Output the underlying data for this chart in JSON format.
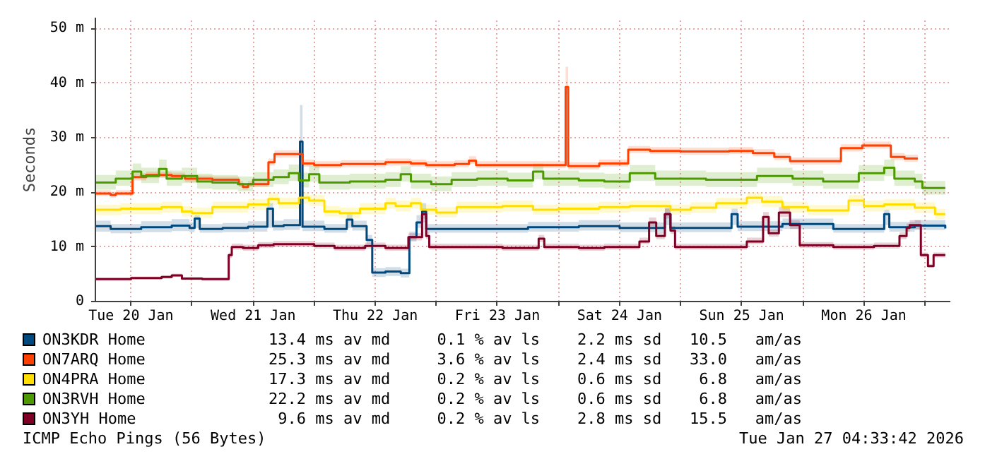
{
  "chart_data": {
    "type": "step",
    "ylabel": "Seconds",
    "legend": "bottom",
    "grid": true,
    "line_style": "solid",
    "marker": "none",
    "xlim": [
      "2026-01-20T05:00",
      "2026-01-27T05:00"
    ],
    "ylim": [
      0,
      52
    ],
    "xticks": [
      {
        "value": "2026-01-20T12:00",
        "label": "Tue 20 Jan"
      },
      {
        "value": "2026-01-21T00:00",
        "label": null
      },
      {
        "value": "2026-01-21T12:00",
        "label": "Wed 21 Jan"
      },
      {
        "value": "2026-01-22T00:00",
        "label": null
      },
      {
        "value": "2026-01-22T12:00",
        "label": "Thu 22 Jan"
      },
      {
        "value": "2026-01-23T00:00",
        "label": null
      },
      {
        "value": "2026-01-23T12:00",
        "label": "Fri 23 Jan"
      },
      {
        "value": "2026-01-24T00:00",
        "label": null
      },
      {
        "value": "2026-01-24T12:00",
        "label": "Sat 24 Jan"
      },
      {
        "value": "2026-01-25T00:00",
        "label": null
      },
      {
        "value": "2026-01-25T12:00",
        "label": "Sun 25 Jan"
      },
      {
        "value": "2026-01-26T00:00",
        "label": null
      },
      {
        "value": "2026-01-26T12:00",
        "label": "Mon 26 Jan"
      },
      {
        "value": "2026-01-27T00:00",
        "label": null
      }
    ],
    "yticks": [
      0,
      {
        "value": 10,
        "label": "10 m"
      },
      {
        "value": 20,
        "label": "20 m"
      },
      {
        "value": 30,
        "label": "30 m"
      },
      {
        "value": 40,
        "label": "40 m"
      },
      {
        "value": 50,
        "label": "50 m"
      }
    ],
    "series": [
      {
        "name": "ON3KDR Home",
        "color": "#00497f",
        "x": [
          "2026-01-20T05:00",
          "2026-01-20T08:00",
          "2026-01-20T14:00",
          "2026-01-20T20:00",
          "2026-01-20T23:30",
          "2026-01-21T00:30",
          "2026-01-21T01:30",
          "2026-01-21T06:00",
          "2026-01-21T11:00",
          "2026-01-21T14:48",
          "2026-01-21T15:54",
          "2026-01-21T18:00",
          "2026-01-21T21:12",
          "2026-01-21T21:42",
          "2026-01-22T02:00",
          "2026-01-22T06:24",
          "2026-01-22T07:30",
          "2026-01-22T10:18",
          "2026-01-22T11:24",
          "2026-01-22T14:00",
          "2026-01-22T17:00",
          "2026-01-22T18:42",
          "2026-01-22T20:06",
          "2026-01-22T21:12",
          "2026-01-22T22:00",
          "2026-01-23T08:00",
          "2026-01-23T18:00",
          "2026-01-24T04:00",
          "2026-01-24T12:00",
          "2026-01-24T20:54",
          "2026-01-24T22:00",
          "2026-01-25T05:00",
          "2026-01-25T10:00",
          "2026-01-25T11:12",
          "2026-01-25T20:00",
          "2026-01-26T06:00",
          "2026-01-26T16:00",
          "2026-01-26T17:00",
          "2026-01-26T22:00",
          "2026-01-27T04:00"
        ],
        "values": [
          13.8,
          13.3,
          13.6,
          13.9,
          13.5,
          15.2,
          13.3,
          13.5,
          13.7,
          17,
          13.8,
          14,
          29.3,
          13.7,
          13.3,
          15,
          13.8,
          11.3,
          5.3,
          5.5,
          5.2,
          11.8,
          14.5,
          16.5,
          13.3,
          13.3,
          13.6,
          13.8,
          13.5,
          16,
          13.5,
          13.5,
          16,
          13.7,
          14.2,
          13.3,
          16,
          13.6,
          13.9,
          13.4
        ],
        "lower": [
          12.8,
          12.5,
          12.7,
          12.9,
          12.7,
          13.5,
          12.6,
          12.7,
          12.8,
          13.5,
          13,
          13.1,
          13.5,
          12.9,
          12.6,
          13.5,
          13,
          10.5,
          4.5,
          4.7,
          4.4,
          11,
          13.5,
          14.5,
          12.6,
          12.6,
          12.8,
          13,
          12.7,
          14,
          12.7,
          12.7,
          14,
          12.9,
          13.3,
          12.6,
          14,
          12.8,
          13.1,
          12.7
        ],
        "upper": [
          14.8,
          14.2,
          14.7,
          15.1,
          14.5,
          15.8,
          14.2,
          14.4,
          14.7,
          18,
          14.8,
          15.1,
          36,
          14.8,
          14.2,
          16,
          14.8,
          12.2,
          6.1,
          6.3,
          6,
          12.8,
          15.8,
          18,
          14.2,
          14.2,
          14.6,
          14.9,
          14.5,
          17.2,
          14.5,
          14.5,
          17,
          14.7,
          15.2,
          14.2,
          16.8,
          14.6,
          14.9,
          14.2
        ]
      },
      {
        "name": "ON7ARQ Home",
        "color": "#ff4000",
        "x": [
          "2026-01-20T05:00",
          "2026-01-20T08:00",
          "2026-01-20T09:00",
          "2026-01-20T12:18",
          "2026-01-20T15:00",
          "2026-01-20T20:00",
          "2026-01-20T22:36",
          "2026-01-21T04:00",
          "2026-01-21T09:12",
          "2026-01-21T10:00",
          "2026-01-21T11:00",
          "2026-01-21T15:00",
          "2026-01-21T16:12",
          "2026-01-21T21:42",
          "2026-01-22T00:00",
          "2026-01-22T05:18",
          "2026-01-22T14:00",
          "2026-01-22T19:00",
          "2026-01-22T22:00",
          "2026-01-23T03:36",
          "2026-01-23T06:24",
          "2026-01-23T07:48",
          "2026-01-23T18:00",
          "2026-01-24T01:24",
          "2026-01-24T01:54",
          "2026-01-24T08:00",
          "2026-01-24T13:42",
          "2026-01-24T18:00",
          "2026-01-25T00:00",
          "2026-01-25T09:30",
          "2026-01-25T14:12",
          "2026-01-25T18:24",
          "2026-01-25T21:30",
          "2026-01-26T07:30",
          "2026-01-26T11:42",
          "2026-01-26T17:18",
          "2026-01-26T20:00",
          "2026-01-26T22:36"
        ],
        "values": [
          19.8,
          19.5,
          19.8,
          22.8,
          23.2,
          23,
          22.5,
          22.3,
          21.5,
          21,
          21.5,
          25.5,
          27,
          25.3,
          25,
          25.2,
          25.5,
          25.3,
          25,
          25.2,
          25.8,
          25,
          25,
          39.3,
          24.8,
          25.3,
          27.8,
          27.6,
          27.5,
          27.6,
          27.2,
          26.5,
          25.7,
          28.1,
          28.6,
          26.5,
          26.2,
          26.2
        ],
        "lower": [
          19.3,
          19,
          19.3,
          22.2,
          22.6,
          22.4,
          21.9,
          21.7,
          21,
          20.5,
          21,
          24.9,
          26.4,
          24.7,
          24.4,
          24.6,
          24.9,
          24.7,
          24.4,
          24.6,
          25.2,
          24.4,
          24.4,
          38,
          24.2,
          24.7,
          27.2,
          27,
          26.9,
          27,
          26.6,
          25.9,
          25.1,
          27.5,
          28,
          25.9,
          25.6,
          25.6
        ],
        "upper": [
          20.4,
          20.1,
          20.4,
          23.5,
          23.8,
          23.6,
          23.1,
          22.9,
          22.1,
          21.6,
          22.1,
          26.2,
          27.7,
          26,
          25.7,
          25.9,
          26.2,
          26,
          25.7,
          25.9,
          26.6,
          25.7,
          25.7,
          43,
          25.5,
          26,
          28.5,
          28.3,
          28.2,
          28.3,
          27.9,
          27.2,
          26.4,
          28.8,
          29.3,
          27.2,
          26.9,
          26.9
        ]
      },
      {
        "name": "ON4PRA Home",
        "color": "#ffde00",
        "x": [
          "2026-01-20T05:00",
          "2026-01-20T10:00",
          "2026-01-20T18:00",
          "2026-01-20T22:00",
          "2026-01-21T00:00",
          "2026-01-21T04:00",
          "2026-01-21T11:00",
          "2026-01-21T15:00",
          "2026-01-21T17:00",
          "2026-01-21T21:00",
          "2026-01-21T23:00",
          "2026-01-22T02:00",
          "2026-01-22T05:00",
          "2026-01-22T09:00",
          "2026-01-22T14:00",
          "2026-01-22T16:00",
          "2026-01-22T19:00",
          "2026-01-22T21:00",
          "2026-01-23T00:00",
          "2026-01-23T04:00",
          "2026-01-23T13:00",
          "2026-01-23T19:00",
          "2026-01-24T00:00",
          "2026-01-24T08:00",
          "2026-01-24T14:00",
          "2026-01-24T22:00",
          "2026-01-25T02:00",
          "2026-01-25T07:00",
          "2026-01-25T13:00",
          "2026-01-25T16:00",
          "2026-01-25T20:00",
          "2026-01-26T01:00",
          "2026-01-26T09:00",
          "2026-01-26T12:00",
          "2026-01-26T16:00",
          "2026-01-26T22:00",
          "2026-01-27T02:00",
          "2026-01-27T04:00"
        ],
        "values": [
          16.8,
          17,
          17.3,
          16.5,
          16.2,
          17.3,
          17.8,
          18.8,
          18,
          19,
          18.5,
          16.5,
          16.2,
          17,
          18,
          17.5,
          18,
          16.8,
          16.3,
          17.3,
          17.5,
          16.8,
          17,
          17.3,
          17.5,
          16.8,
          17.2,
          18,
          19,
          18.3,
          17.3,
          16.7,
          18.5,
          17.5,
          17.8,
          17.2,
          16,
          16
        ],
        "lower": [
          15.8,
          16,
          16.3,
          15.6,
          15.3,
          16.3,
          16.8,
          17.7,
          17,
          17.9,
          17.5,
          15.6,
          15.3,
          16,
          17,
          16.5,
          17,
          15.9,
          15.4,
          16.3,
          16.5,
          15.9,
          16,
          16.3,
          16.5,
          15.9,
          16.2,
          17,
          17.9,
          17.3,
          16.3,
          15.8,
          17.5,
          16.5,
          16.8,
          16.2,
          15.1,
          15.1
        ],
        "upper": [
          17.8,
          18,
          18.3,
          17.5,
          17.2,
          18.3,
          18.8,
          19.8,
          19,
          20,
          19.5,
          17.5,
          17.2,
          18,
          19,
          18.5,
          19,
          17.8,
          17.3,
          18.3,
          18.5,
          17.8,
          18,
          18.3,
          18.5,
          17.8,
          18.2,
          19,
          20,
          19.3,
          18.3,
          17.7,
          19.5,
          18.5,
          18.8,
          18.2,
          17,
          17
        ]
      },
      {
        "name": "ON3RVH Home",
        "color": "#4d9900",
        "x": [
          "2026-01-20T05:00",
          "2026-01-20T09:00",
          "2026-01-20T12:18",
          "2026-01-20T14:00",
          "2026-01-20T17:30",
          "2026-01-20T19:00",
          "2026-01-20T22:00",
          "2026-01-21T01:00",
          "2026-01-21T04:00",
          "2026-01-21T09:00",
          "2026-01-21T12:00",
          "2026-01-21T16:00",
          "2026-01-21T19:00",
          "2026-01-21T21:00",
          "2026-01-21T23:00",
          "2026-01-22T01:00",
          "2026-01-22T07:00",
          "2026-01-22T14:00",
          "2026-01-22T17:00",
          "2026-01-22T19:00",
          "2026-01-22T23:00",
          "2026-01-23T03:00",
          "2026-01-23T08:00",
          "2026-01-23T14:00",
          "2026-01-23T19:00",
          "2026-01-23T21:00",
          "2026-01-24T04:00",
          "2026-01-24T09:00",
          "2026-01-24T14:00",
          "2026-01-24T19:00",
          "2026-01-25T05:00",
          "2026-01-25T15:00",
          "2026-01-25T22:00",
          "2026-01-26T04:00",
          "2026-01-26T11:00",
          "2026-01-26T16:00",
          "2026-01-26T18:00",
          "2026-01-26T22:00",
          "2026-01-26T23:30",
          "2026-01-27T04:00"
        ],
        "values": [
          21.8,
          22.5,
          23.8,
          23,
          24.3,
          22.5,
          23,
          22,
          21.8,
          21.5,
          22.3,
          22.8,
          23.5,
          22.2,
          23.3,
          21.8,
          22,
          22.3,
          23.3,
          22,
          21.5,
          22.3,
          22.5,
          22.2,
          23.8,
          22.5,
          22.2,
          22,
          23.5,
          22.5,
          22.3,
          23,
          22.5,
          22,
          23.5,
          24.5,
          22.5,
          22,
          20.8,
          20.8
        ],
        "lower": [
          20.5,
          21.2,
          22.4,
          21.7,
          22.8,
          21.2,
          21.7,
          20.7,
          20.5,
          20.2,
          21,
          21.5,
          22.1,
          20.9,
          22,
          20.5,
          20.7,
          21,
          22,
          20.7,
          20.2,
          21,
          21.2,
          20.9,
          22.4,
          21.2,
          20.9,
          20.7,
          22.1,
          21.2,
          21,
          21.7,
          21.2,
          20.7,
          22.1,
          23,
          21.2,
          20.7,
          19.6,
          19.6
        ],
        "upper": [
          23.2,
          24,
          25.3,
          24.5,
          26,
          24,
          24.5,
          23.4,
          23.2,
          22.9,
          23.7,
          24.2,
          25.1,
          23.6,
          24.8,
          23.2,
          23.4,
          23.7,
          24.8,
          23.4,
          22.9,
          23.7,
          24,
          23.6,
          25.3,
          24,
          23.6,
          23.4,
          25,
          24,
          23.7,
          24.5,
          24,
          23.4,
          25,
          26,
          24,
          23.4,
          22.1,
          22.1
        ]
      },
      {
        "name": "ON3YH Home",
        "color": "#7f0024",
        "x": [
          "2026-01-20T05:00",
          "2026-01-20T12:00",
          "2026-01-20T18:00",
          "2026-01-20T20:00",
          "2026-01-20T22:00",
          "2026-01-21T02:00",
          "2026-01-21T07:12",
          "2026-01-21T07:48",
          "2026-01-21T10:00",
          "2026-01-21T13:00",
          "2026-01-21T16:00",
          "2026-01-22T00:00",
          "2026-01-22T04:00",
          "2026-01-22T10:00",
          "2026-01-22T14:00",
          "2026-01-22T18:30",
          "2026-01-22T21:12",
          "2026-01-22T22:00",
          "2026-01-22T22:36",
          "2026-01-23T03:00",
          "2026-01-23T13:00",
          "2026-01-23T20:06",
          "2026-01-23T21:12",
          "2026-01-24T04:00",
          "2026-01-24T09:00",
          "2026-01-24T15:54",
          "2026-01-24T17:48",
          "2026-01-24T19:12",
          "2026-01-24T20:54",
          "2026-01-24T22:00",
          "2026-01-24T22:54",
          "2026-01-25T05:00",
          "2026-01-25T13:00",
          "2026-01-25T16:12",
          "2026-01-25T17:18",
          "2026-01-25T19:18",
          "2026-01-25T21:30",
          "2026-01-25T23:24",
          "2026-01-26T06:00",
          "2026-01-26T14:00",
          "2026-01-26T19:00",
          "2026-01-26T20:24",
          "2026-01-26T21:00",
          "2026-01-26T23:12",
          "2026-01-27T00:36",
          "2026-01-27T01:42",
          "2026-01-27T04:00"
        ],
        "values": [
          4.1,
          4.3,
          4.5,
          4.8,
          4.2,
          4.1,
          8.5,
          10,
          9.8,
          10.3,
          10.5,
          10.2,
          9.8,
          10.2,
          9.8,
          11.8,
          16,
          12,
          10,
          10,
          9.8,
          11.5,
          10,
          9.8,
          10,
          11,
          14.5,
          12,
          16,
          13,
          10,
          10,
          11,
          15.5,
          12.5,
          16.3,
          14,
          10.3,
          10,
          10.2,
          12,
          13.5,
          14,
          8.5,
          6.5,
          8.5,
          8.5
        ],
        "lower": [
          3.8,
          4,
          4.2,
          4.5,
          3.9,
          3.8,
          8,
          9.5,
          9.3,
          9.8,
          10,
          9.7,
          9.3,
          9.7,
          9.3,
          11.2,
          15.2,
          11.4,
          9.5,
          9.5,
          9.3,
          10.9,
          9.5,
          9.3,
          9.5,
          10.5,
          13.8,
          11.4,
          15.2,
          12.4,
          9.5,
          9.5,
          10.5,
          14.7,
          11.9,
          15.5,
          13.3,
          9.8,
          9.5,
          9.7,
          11.4,
          12.8,
          13.3,
          8.1,
          6.2,
          8.1,
          8.1
        ],
        "upper": [
          4.4,
          4.6,
          4.8,
          5.1,
          4.5,
          4.4,
          9,
          10.6,
          10.4,
          10.9,
          11.1,
          10.8,
          10.4,
          10.8,
          10.4,
          12.5,
          17,
          12.7,
          10.6,
          10.6,
          10.4,
          12.2,
          10.6,
          10.4,
          10.6,
          11.7,
          15.4,
          12.7,
          17,
          13.8,
          10.6,
          10.6,
          11.7,
          16.4,
          13.2,
          17.3,
          14.9,
          10.9,
          10.6,
          10.8,
          12.7,
          14.3,
          14.9,
          9,
          6.9,
          9,
          9
        ]
      }
    ],
    "annotations": [
      "13.4 ms av md     0.1 % av ls    2.2 ms sd   10.5   am/as",
      "25.3 ms av md     3.6 % av ls    2.4 ms sd   33.0   am/as",
      "17.3 ms av md     0.2 % av ls    0.6 ms sd    6.8   am/as",
      "22.2 ms av md     0.2 % av ls    0.6 ms sd    6.8   am/as",
      " 9.6 ms av md     0.2 % av ls    2.8 ms sd   15.5   am/as",
      "ICMP Echo Pings (56 Bytes)",
      "Tue Jan 27 04:33:42 2026"
    ]
  }
}
